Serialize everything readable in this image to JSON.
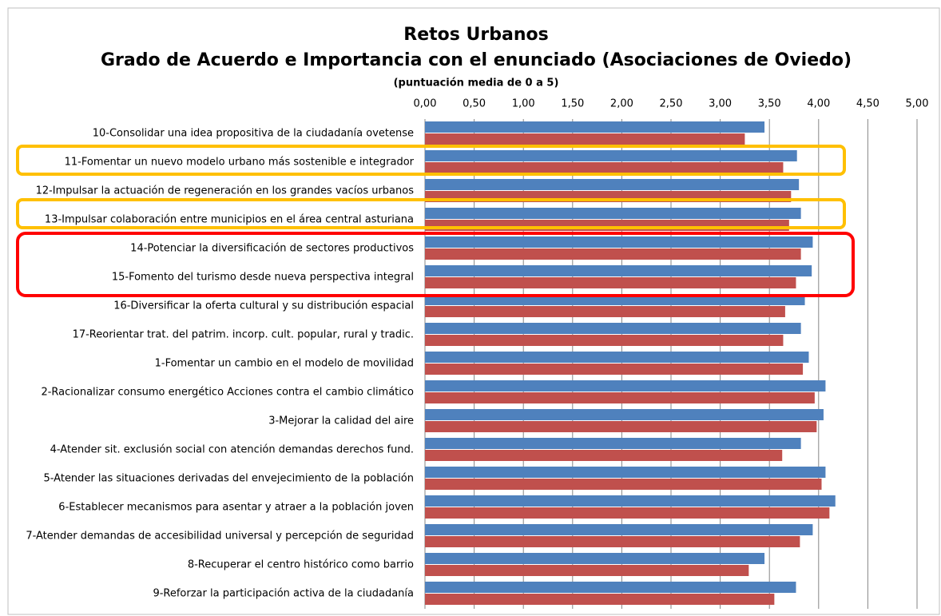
{
  "chart_data": {
    "type": "bar",
    "orientation": "horizontal",
    "title": "Retos Urbanos",
    "subtitle": "Grado de Acuerdo e Importancia con el enunciado (Asociaciones de Oviedo)",
    "note": "(puntuación media de 0 a 5)",
    "categories": [
      "10-Consolidar una idea propositiva de la ciudadanía ovetense",
      "11-Fomentar un nuevo modelo urbano más sostenible e integrador",
      "12-Impulsar la actuación de regeneración en los grandes vacíos urbanos",
      "13-Impulsar colaboración entre municipios en el área central asturiana",
      "14-Potenciar la diversificación de sectores productivos",
      "15-Fomento del turismo desde nueva perspectiva integral",
      "16-Diversificar la oferta cultural y su distribución espacial",
      "17-Reorientar trat. del patrim. incorp. cult. popular, rural y tradic.",
      "1-Fomentar un cambio en el modelo de movilidad",
      "2-Racionalizar consumo energético Acciones contra el cambio climático",
      "3-Mejorar la calidad del aire",
      "4-Atender sit. exclusión social con atención demandas derechos fund.",
      "5-Atender las situaciones derivadas del envejecimiento de la población",
      "6-Establecer mecanismos para asentar y atraer a la población joven",
      "7-Atender demandas de accesibilidad universal y percepción de seguridad",
      "8-Recuperar el centro histórico como barrio",
      "9-Reforzar la participación activa de la ciudadanía"
    ],
    "series": [
      {
        "color": "#4f81bd",
        "values": [
          3.45,
          3.78,
          3.8,
          3.82,
          3.94,
          3.93,
          3.86,
          3.82,
          3.9,
          4.07,
          4.05,
          3.82,
          4.07,
          4.17,
          3.94,
          3.45,
          3.77
        ]
      },
      {
        "color": "#c0504d",
        "values": [
          3.25,
          3.64,
          3.72,
          3.7,
          3.82,
          3.77,
          3.66,
          3.64,
          3.84,
          3.96,
          3.98,
          3.63,
          4.03,
          4.11,
          3.81,
          3.29,
          3.55
        ]
      }
    ],
    "xlim": [
      0,
      5
    ],
    "xticks": [
      {
        "value": 0,
        "label": "0,00"
      },
      {
        "value": 0.5,
        "label": "0,50"
      },
      {
        "value": 1,
        "label": "1,00"
      },
      {
        "value": 1.5,
        "label": "1,50"
      },
      {
        "value": 2,
        "label": "2,00"
      },
      {
        "value": 2.5,
        "label": "2,50"
      },
      {
        "value": 3,
        "label": "3,00"
      },
      {
        "value": 3.5,
        "label": "3,50"
      },
      {
        "value": 4,
        "label": "4,00"
      },
      {
        "value": 4.5,
        "label": "4,50"
      },
      {
        "value": 5,
        "label": "5,00"
      }
    ],
    "grid": true
  }
}
